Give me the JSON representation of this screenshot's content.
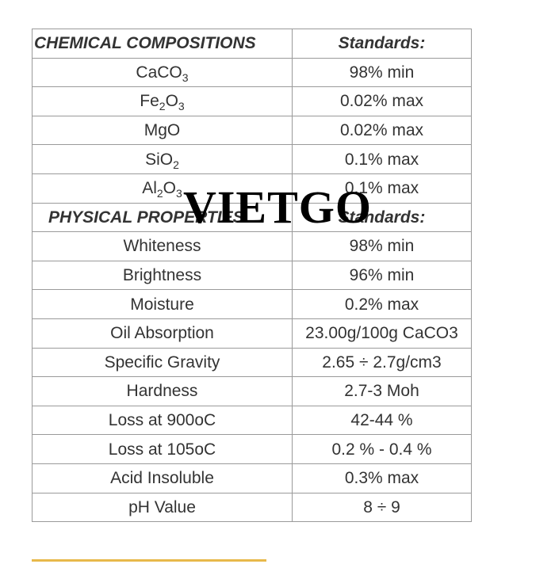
{
  "watermark": "VIETGO",
  "chemical": {
    "header": "CHEMICAL COMPOSITIONS",
    "standards_header": "Standards:",
    "rows": [
      {
        "base": "CaCO",
        "sub": "3",
        "tail": "",
        "value": "98% min"
      },
      {
        "base": "Fe",
        "sub": "2",
        "tail": "O3",
        "value": "0.02% max"
      },
      {
        "base": "MgO",
        "sub": "",
        "tail": "",
        "value": "0.02% max"
      },
      {
        "base": "SiO",
        "sub": "2",
        "tail": "",
        "value": "0.1% max"
      },
      {
        "base": "Al",
        "sub": "2",
        "tail": "O3",
        "value": "0.1% max"
      }
    ]
  },
  "physical": {
    "header": "PHYSICAL PROPERTIES",
    "standards_header": "Standards:",
    "rows": [
      {
        "name": "Whiteness",
        "value": "98% min"
      },
      {
        "name": "Brightness",
        "value": "96% min"
      },
      {
        "name": "Moisture",
        "value": "0.2% max"
      },
      {
        "name": "Oil Absorption",
        "value": "23.00g/100g CaCO3"
      },
      {
        "name": "Specific Gravity",
        "value": "2.65 ÷ 2.7g/cm3"
      },
      {
        "name": "Hardness",
        "value": "2.7-3 Moh"
      },
      {
        "name": "Loss at 900oC",
        "value": "42-44 %"
      },
      {
        "name": "Loss at 105oC",
        "value": "0.2 % - 0.4 %"
      },
      {
        "name": "Acid Insoluble",
        "value": "0.3% max"
      },
      {
        "name": "pH Value",
        "value": "8 ÷ 9"
      }
    ]
  }
}
